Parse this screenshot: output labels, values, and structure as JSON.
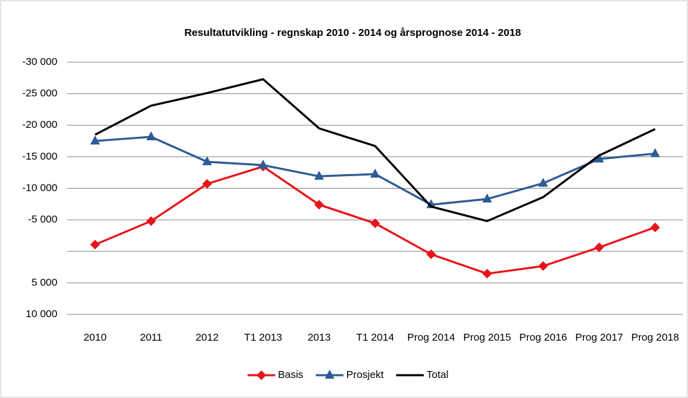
{
  "chart_data": {
    "type": "line",
    "title": "Resultatutvikling  -  regnskap 2010 - 2014 og årsprognose 2014 - 2018",
    "categories": [
      "2010",
      "2011",
      "2012",
      "T1 2013",
      "2013",
      "T1 2014",
      "Prog 2014",
      "Prog 2015",
      "Prog 2016",
      "Prog 2017",
      "Prog 2018"
    ],
    "series": [
      {
        "name": "Basis",
        "color": "#e8141c",
        "marker": "diamond",
        "values": [
          -1070,
          -4800,
          -10700,
          -13450,
          -7400,
          -4450,
          470,
          3540,
          2330,
          -630,
          -3800
        ]
      },
      {
        "name": "Prosjekt",
        "color": "#2e5b94",
        "marker": "triangle",
        "values": [
          -17500,
          -18160,
          -14200,
          -13670,
          -11900,
          -12250,
          -7400,
          -8300,
          -10800,
          -14650,
          -15500
        ]
      },
      {
        "name": "Total",
        "color": "#000000",
        "marker": "none",
        "values": [
          -18500,
          -23100,
          -25100,
          -27300,
          -19500,
          -16700,
          -7100,
          -4800,
          -8600,
          -15200,
          -19400
        ]
      }
    ],
    "ylim": [
      -30000,
      10000
    ],
    "y_reversed": true,
    "yticks": [
      {
        "value": -30000,
        "label": "-30 000"
      },
      {
        "value": -25000,
        "label": "-25 000"
      },
      {
        "value": -20000,
        "label": "-20 000"
      },
      {
        "value": -15000,
        "label": "-15 000"
      },
      {
        "value": -10000,
        "label": "-10 000"
      },
      {
        "value": -5000,
        "label": "-5 000"
      },
      {
        "value": 0
      },
      {
        "value": 5000,
        "label": "5 000"
      },
      {
        "value": 10000,
        "label": "10 000"
      }
    ],
    "grid": true,
    "legend": "bottom"
  }
}
